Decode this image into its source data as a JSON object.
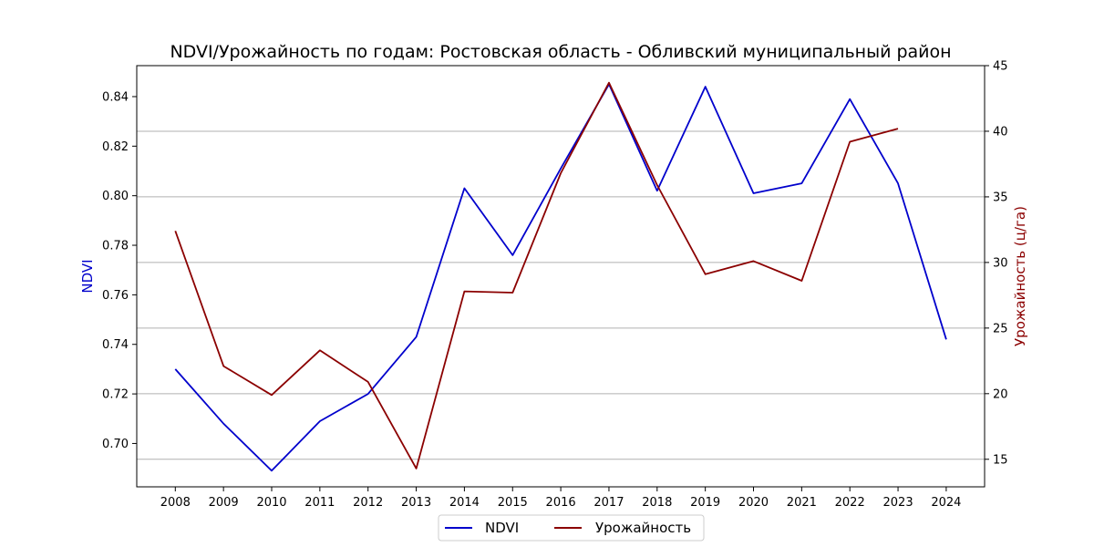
{
  "chart_data": {
    "type": "line",
    "title": "NDVI/Урожайность по годам: Ростовская область - Обливский муниципальный район",
    "x": [
      "2008",
      "2009",
      "2010",
      "2011",
      "2012",
      "2013",
      "2014",
      "2015",
      "2016",
      "2017",
      "2018",
      "2019",
      "2020",
      "2021",
      "2022",
      "2023",
      "2024"
    ],
    "y_left": {
      "label": "NDVI",
      "color": "#0000cc",
      "ticks": [
        0.7,
        0.72,
        0.74,
        0.76,
        0.78,
        0.8,
        0.82,
        0.84
      ],
      "tick_labels": [
        "0.70",
        "0.72",
        "0.74",
        "0.76",
        "0.78",
        "0.80",
        "0.82",
        "0.84"
      ],
      "ylim": [
        0.6825,
        0.8525
      ]
    },
    "y_right": {
      "label": "Урожайность (ц/га)",
      "color": "#8b0000",
      "ticks": [
        15,
        20,
        25,
        30,
        35,
        40,
        45
      ],
      "tick_labels": [
        "15",
        "20",
        "25",
        "30",
        "35",
        "40",
        "45"
      ],
      "ylim": [
        12.9,
        45.0
      ]
    },
    "grid": "right-axis horizontal",
    "legend": {
      "placement": "bottom-center",
      "entries": [
        "NDVI",
        "Урожайность"
      ]
    },
    "series": [
      {
        "name": "NDVI",
        "axis": "left",
        "color": "#0000cc",
        "values": [
          0.73,
          0.708,
          0.689,
          0.709,
          0.72,
          0.743,
          0.803,
          0.776,
          0.811,
          0.845,
          0.802,
          0.844,
          0.801,
          0.805,
          0.839,
          0.805,
          0.742
        ]
      },
      {
        "name": "Урожайность",
        "axis": "right",
        "color": "#8b0000",
        "values": [
          32.4,
          22.1,
          19.9,
          23.3,
          20.9,
          14.3,
          27.8,
          27.7,
          36.8,
          43.7,
          35.9,
          29.1,
          30.1,
          28.6,
          39.2,
          40.2,
          null
        ]
      }
    ]
  }
}
